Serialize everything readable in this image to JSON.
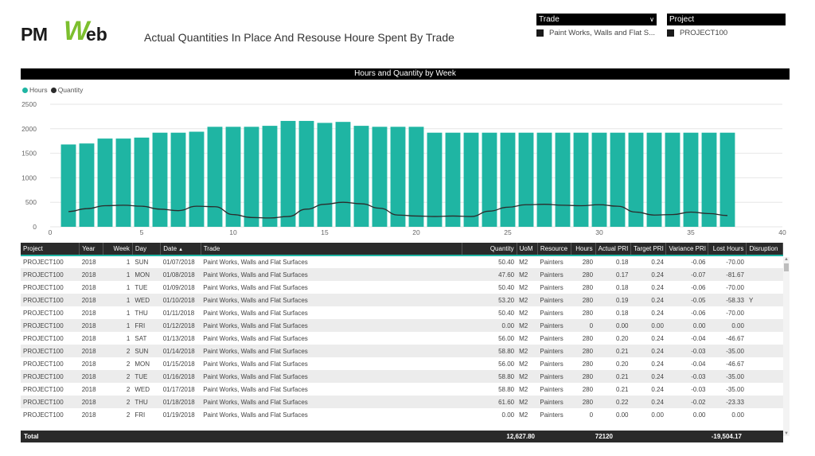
{
  "logo": {
    "part1": "PM",
    "w": "W",
    "part2": "eb"
  },
  "page_title": "Actual Quantities In Place And Resouse Houre Spent By Trade",
  "slicers": {
    "trade": {
      "label": "Trade",
      "value": "Paint Works, Walls and Flat S..."
    },
    "project": {
      "label": "Project",
      "value": "PROJECT100"
    }
  },
  "colors": {
    "hours": "#1fb5a3",
    "quantity": "#2b2b2b",
    "header_bg": "#000000"
  },
  "chart_data": {
    "type": "bar",
    "title": "Hours and Quantity by Week",
    "legend": [
      "Hours",
      "Quantity"
    ],
    "legend_position": "top-left",
    "x": [
      1,
      2,
      3,
      4,
      5,
      6,
      7,
      8,
      9,
      10,
      11,
      12,
      13,
      14,
      15,
      16,
      17,
      18,
      19,
      20,
      21,
      22,
      23,
      24,
      25,
      26,
      27,
      28,
      29,
      30,
      31,
      32,
      33,
      34,
      35,
      36,
      37
    ],
    "series": [
      {
        "name": "Hours",
        "type": "bar",
        "values": [
          1680,
          1700,
          1800,
          1800,
          1820,
          1920,
          1920,
          1940,
          2040,
          2040,
          2040,
          2060,
          2160,
          2160,
          2120,
          2140,
          2060,
          2040,
          2040,
          2040,
          1920,
          1920,
          1920,
          1920,
          1920,
          1920,
          1920,
          1920,
          1920,
          1920,
          1920,
          1920,
          1920,
          1920,
          1920,
          1920,
          1920
        ]
      },
      {
        "name": "Quantity",
        "type": "line",
        "values": [
          310,
          370,
          430,
          440,
          420,
          360,
          330,
          420,
          410,
          250,
          190,
          180,
          210,
          360,
          460,
          500,
          470,
          380,
          240,
          220,
          210,
          220,
          210,
          320,
          400,
          450,
          460,
          440,
          430,
          450,
          420,
          300,
          240,
          250,
          300,
          270,
          230
        ]
      }
    ],
    "xlim": [
      0,
      40
    ],
    "ylim": [
      0,
      2500
    ],
    "xticks": [
      0,
      5,
      10,
      15,
      20,
      25,
      30,
      35,
      40
    ],
    "yticks": [
      0,
      500,
      1000,
      1500,
      2000,
      2500
    ],
    "grid": true
  },
  "table": {
    "columns": [
      "Project",
      "Year",
      "Week",
      "Day",
      "Date",
      "Trade",
      "Quantity",
      "UoM",
      "Resource",
      "Hours",
      "Actual PRI",
      "Target PRI",
      "Variance PRI",
      "Lost Hours",
      "Disruption"
    ],
    "rows": [
      [
        "PROJECT100",
        "2018",
        "1",
        "SUN",
        "01/07/2018",
        "Paint Works, Walls and Flat Surfaces",
        "50.40",
        "M2",
        "Painters",
        "280",
        "0.18",
        "0.24",
        "-0.06",
        "-70.00",
        ""
      ],
      [
        "PROJECT100",
        "2018",
        "1",
        "MON",
        "01/08/2018",
        "Paint Works, Walls and Flat Surfaces",
        "47.60",
        "M2",
        "Painters",
        "280",
        "0.17",
        "0.24",
        "-0.07",
        "-81.67",
        ""
      ],
      [
        "PROJECT100",
        "2018",
        "1",
        "TUE",
        "01/09/2018",
        "Paint Works, Walls and Flat Surfaces",
        "50.40",
        "M2",
        "Painters",
        "280",
        "0.18",
        "0.24",
        "-0.06",
        "-70.00",
        ""
      ],
      [
        "PROJECT100",
        "2018",
        "1",
        "WED",
        "01/10/2018",
        "Paint Works, Walls and Flat Surfaces",
        "53.20",
        "M2",
        "Painters",
        "280",
        "0.19",
        "0.24",
        "-0.05",
        "-58.33",
        "Y"
      ],
      [
        "PROJECT100",
        "2018",
        "1",
        "THU",
        "01/11/2018",
        "Paint Works, Walls and Flat Surfaces",
        "50.40",
        "M2",
        "Painters",
        "280",
        "0.18",
        "0.24",
        "-0.06",
        "-70.00",
        ""
      ],
      [
        "PROJECT100",
        "2018",
        "1",
        "FRI",
        "01/12/2018",
        "Paint Works, Walls and Flat Surfaces",
        "0.00",
        "M2",
        "Painters",
        "0",
        "0.00",
        "0.00",
        "0.00",
        "0.00",
        ""
      ],
      [
        "PROJECT100",
        "2018",
        "1",
        "SAT",
        "01/13/2018",
        "Paint Works, Walls and Flat Surfaces",
        "56.00",
        "M2",
        "Painters",
        "280",
        "0.20",
        "0.24",
        "-0.04",
        "-46.67",
        ""
      ],
      [
        "PROJECT100",
        "2018",
        "2",
        "SUN",
        "01/14/2018",
        "Paint Works, Walls and Flat Surfaces",
        "58.80",
        "M2",
        "Painters",
        "280",
        "0.21",
        "0.24",
        "-0.03",
        "-35.00",
        ""
      ],
      [
        "PROJECT100",
        "2018",
        "2",
        "MON",
        "01/15/2018",
        "Paint Works, Walls and Flat Surfaces",
        "56.00",
        "M2",
        "Painters",
        "280",
        "0.20",
        "0.24",
        "-0.04",
        "-46.67",
        ""
      ],
      [
        "PROJECT100",
        "2018",
        "2",
        "TUE",
        "01/16/2018",
        "Paint Works, Walls and Flat Surfaces",
        "58.80",
        "M2",
        "Painters",
        "280",
        "0.21",
        "0.24",
        "-0.03",
        "-35.00",
        ""
      ],
      [
        "PROJECT100",
        "2018",
        "2",
        "WED",
        "01/17/2018",
        "Paint Works, Walls and Flat Surfaces",
        "58.80",
        "M2",
        "Painters",
        "280",
        "0.21",
        "0.24",
        "-0.03",
        "-35.00",
        ""
      ],
      [
        "PROJECT100",
        "2018",
        "2",
        "THU",
        "01/18/2018",
        "Paint Works, Walls and Flat Surfaces",
        "61.60",
        "M2",
        "Painters",
        "280",
        "0.22",
        "0.24",
        "-0.02",
        "-23.33",
        ""
      ],
      [
        "PROJECT100",
        "2018",
        "2",
        "FRI",
        "01/19/2018",
        "Paint Works, Walls and Flat Surfaces",
        "0.00",
        "M2",
        "Painters",
        "0",
        "0.00",
        "0.00",
        "0.00",
        "0.00",
        ""
      ]
    ],
    "total": {
      "label": "Total",
      "quantity": "12,627.80",
      "hours": "72120",
      "lost_hours": "-19,504.17"
    }
  }
}
